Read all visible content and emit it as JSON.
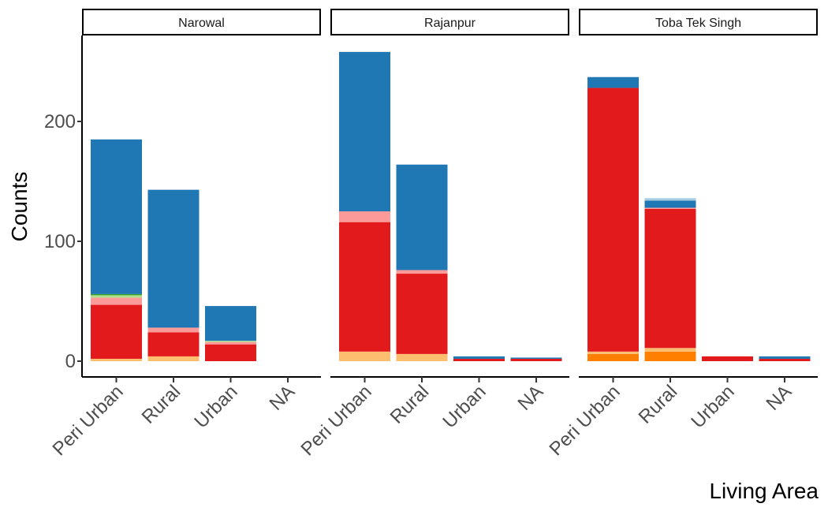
{
  "chart_data": {
    "type": "bar",
    "stacked": true,
    "xlabel": "Living Area",
    "ylabel": "Counts",
    "ylim": [
      0,
      260
    ],
    "y_ticks": [
      0,
      100,
      200
    ],
    "categories": [
      "Peri Urban",
      "Rural",
      "Urban",
      "NA"
    ],
    "colors": {
      "peach": "#FDBF6F",
      "orange": "#FF7F00",
      "red": "#E31A1C",
      "pink": "#FB9A99",
      "lightgreen": "#B2DF8A",
      "green": "#33A02C",
      "blue": "#1F78B4",
      "lightblue": "#A6CEE3"
    },
    "panels": [
      {
        "name": "Narowal",
        "bars": [
          {
            "category": "Peri Urban",
            "segments": [
              [
                "peach",
                2
              ],
              [
                "red",
                45
              ],
              [
                "pink",
                6
              ],
              [
                "lightgreen",
                2
              ],
              [
                "green",
                1
              ],
              [
                "blue",
                129
              ]
            ]
          },
          {
            "category": "Rural",
            "segments": [
              [
                "peach",
                4
              ],
              [
                "red",
                20
              ],
              [
                "pink",
                4
              ],
              [
                "blue",
                115
              ]
            ]
          },
          {
            "category": "Urban",
            "segments": [
              [
                "red",
                14
              ],
              [
                "pink",
                2
              ],
              [
                "lightgreen",
                1
              ],
              [
                "blue",
                29
              ]
            ]
          },
          {
            "category": "NA",
            "segments": []
          }
        ]
      },
      {
        "name": "Rajanpur",
        "bars": [
          {
            "category": "Peri Urban",
            "segments": [
              [
                "peach",
                8
              ],
              [
                "red",
                108
              ],
              [
                "pink",
                9
              ],
              [
                "blue",
                133
              ]
            ]
          },
          {
            "category": "Rural",
            "segments": [
              [
                "peach",
                6
              ],
              [
                "red",
                67
              ],
              [
                "pink",
                3
              ],
              [
                "blue",
                88
              ]
            ]
          },
          {
            "category": "Urban",
            "segments": [
              [
                "red",
                2
              ],
              [
                "blue",
                2
              ]
            ]
          },
          {
            "category": "NA",
            "segments": [
              [
                "red",
                2
              ],
              [
                "blue",
                1
              ]
            ]
          }
        ]
      },
      {
        "name": "Toba Tek Singh",
        "bars": [
          {
            "category": "Peri Urban",
            "segments": [
              [
                "orange",
                6
              ],
              [
                "peach",
                2
              ],
              [
                "red",
                220
              ],
              [
                "blue",
                9
              ]
            ]
          },
          {
            "category": "Rural",
            "segments": [
              [
                "orange",
                8
              ],
              [
                "peach",
                3
              ],
              [
                "red",
                116
              ],
              [
                "pink",
                1
              ],
              [
                "blue",
                6
              ],
              [
                "lightblue",
                2
              ]
            ]
          },
          {
            "category": "Urban",
            "segments": [
              [
                "red",
                4
              ]
            ]
          },
          {
            "category": "NA",
            "segments": [
              [
                "red",
                2
              ],
              [
                "blue",
                2
              ]
            ]
          }
        ]
      }
    ]
  }
}
